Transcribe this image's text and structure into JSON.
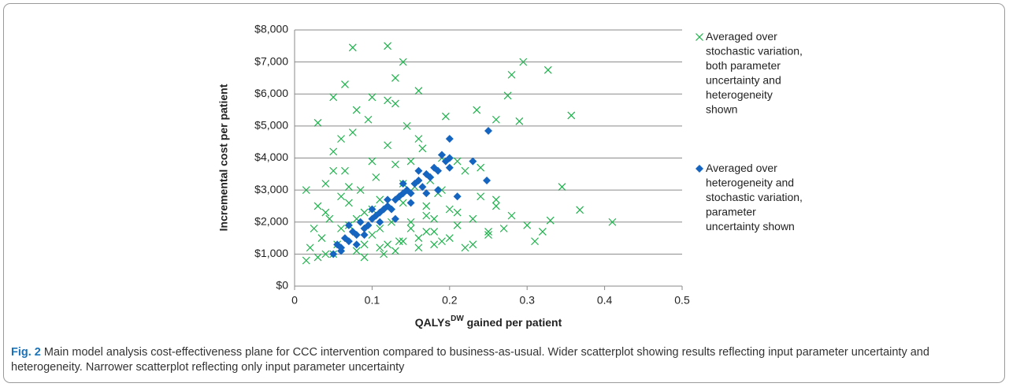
{
  "chart_data": {
    "type": "scatter",
    "y_label": "Incremental cost per patient",
    "x_label": {
      "main": "QALYs",
      "sup": "DW",
      "rest": " gained per patient"
    },
    "xlim": [
      0,
      0.5
    ],
    "xticks": [
      0,
      0.1,
      0.2,
      0.3,
      0.4,
      0.5
    ],
    "ylim": [
      0,
      8000
    ],
    "yticks": [
      {
        "value": 0,
        "label": "$0"
      },
      {
        "value": 1000,
        "label": "$1,000"
      },
      {
        "value": 2000,
        "label": "$2,000"
      },
      {
        "value": 3000,
        "label": "$3,000"
      },
      {
        "value": 4000,
        "label": "$4,000"
      },
      {
        "value": 5000,
        "label": "$5,000"
      },
      {
        "value": 6000,
        "label": "$6,000"
      },
      {
        "value": 7000,
        "label": "$7,000"
      },
      {
        "value": 8000,
        "label": "$8,000"
      }
    ],
    "grid": true,
    "legend": "right",
    "series": [
      {
        "name": "Averaged over stochastic variation, both parameter uncertainty and heterogeneity shown",
        "color": "#1db14b",
        "marker": "x",
        "x": [
          0.075,
          0.12,
          0.14,
          0.13,
          0.065,
          0.295,
          0.327,
          0.357,
          0.41,
          0.368,
          0.345,
          0.33,
          0.31,
          0.28,
          0.275,
          0.29,
          0.235,
          0.195,
          0.26,
          0.16,
          0.1,
          0.05,
          0.03,
          0.015,
          0.015,
          0.04,
          0.02,
          0.025,
          0.03,
          0.035,
          0.04,
          0.045,
          0.05,
          0.055,
          0.06,
          0.065,
          0.07,
          0.075,
          0.08,
          0.085,
          0.09,
          0.095,
          0.1,
          0.105,
          0.11,
          0.115,
          0.12,
          0.125,
          0.13,
          0.135,
          0.14,
          0.145,
          0.15,
          0.155,
          0.16,
          0.165,
          0.17,
          0.175,
          0.18,
          0.185,
          0.19,
          0.2,
          0.21,
          0.22,
          0.23,
          0.24,
          0.25,
          0.26,
          0.27,
          0.28,
          0.3,
          0.32,
          0.03,
          0.04,
          0.05,
          0.06,
          0.07,
          0.08,
          0.09,
          0.1,
          0.11,
          0.12,
          0.13,
          0.14,
          0.15,
          0.16,
          0.17,
          0.18,
          0.19,
          0.2,
          0.21,
          0.22,
          0.24,
          0.26,
          0.06,
          0.08,
          0.1,
          0.12,
          0.14,
          0.16,
          0.18,
          0.05,
          0.07,
          0.09,
          0.11,
          0.13,
          0.15,
          0.17,
          0.19,
          0.21,
          0.23,
          0.25
        ],
        "values": [
          7450,
          7500,
          7000,
          6500,
          6300,
          7000,
          6750,
          5330,
          2000,
          2380,
          3100,
          2050,
          1400,
          6600,
          5950,
          5150,
          5500,
          5300,
          5200,
          6100,
          5900,
          5900,
          5100,
          3000,
          800,
          1000,
          1200,
          1800,
          2500,
          1500,
          3200,
          2100,
          4200,
          1300,
          2800,
          3600,
          1900,
          4800,
          1100,
          3000,
          2300,
          5200,
          1600,
          3400,
          2700,
          1000,
          4400,
          2000,
          3800,
          1400,
          2600,
          5000,
          1800,
          3100,
          1500,
          4300,
          2200,
          3300,
          1700,
          2900,
          4000,
          2400,
          1900,
          3600,
          2100,
          2800,
          1600,
          2500,
          1800,
          2200,
          1900,
          1700,
          900,
          2300,
          1000,
          4600,
          2600,
          5500,
          1300,
          3900,
          1200,
          1300,
          5700,
          1400,
          2000,
          1200,
          2500,
          1300,
          3000,
          1500,
          3900,
          1200,
          3700,
          2700,
          1800,
          2100,
          2400,
          5800,
          3200,
          4600,
          2100,
          3600,
          3100,
          900,
          1800,
          1100,
          3900,
          1700,
          1400,
          2300,
          1300,
          1700
        ]
      },
      {
        "name": "Averaged over heterogeneity and stochastic variation, parameter uncertainty shown",
        "color": "#1565c0",
        "marker": "diamond",
        "x": [
          0.05,
          0.055,
          0.06,
          0.065,
          0.07,
          0.075,
          0.08,
          0.085,
          0.09,
          0.095,
          0.1,
          0.105,
          0.11,
          0.115,
          0.12,
          0.125,
          0.13,
          0.135,
          0.14,
          0.145,
          0.15,
          0.155,
          0.16,
          0.165,
          0.17,
          0.175,
          0.18,
          0.185,
          0.19,
          0.195,
          0.2,
          0.21,
          0.25,
          0.2,
          0.248,
          0.23,
          0.07,
          0.09,
          0.11,
          0.13,
          0.15,
          0.17,
          0.08,
          0.1,
          0.12,
          0.14,
          0.16,
          0.06,
          0.185,
          0.2
        ],
        "values": [
          1000,
          1300,
          1200,
          1500,
          1400,
          1700,
          1600,
          2000,
          1800,
          1900,
          2100,
          2200,
          2300,
          2400,
          2500,
          2400,
          2700,
          2800,
          2900,
          3000,
          2900,
          3200,
          3300,
          3100,
          3500,
          3400,
          3700,
          3600,
          4100,
          3900,
          4000,
          2800,
          4850,
          4600,
          3300,
          3900,
          1900,
          1600,
          2000,
          2100,
          2600,
          2900,
          1300,
          2400,
          2700,
          3200,
          3600,
          1100,
          3000,
          3700
        ]
      }
    ]
  },
  "caption": {
    "label": "Fig. 2",
    "text": " Main model analysis cost-effectiveness plane for CCC intervention compared to business-as-usual. Wider scatterplot showing results reflecting input parameter uncertainty and heterogeneity. Narrower scatterplot reflecting only input parameter uncertainty"
  }
}
